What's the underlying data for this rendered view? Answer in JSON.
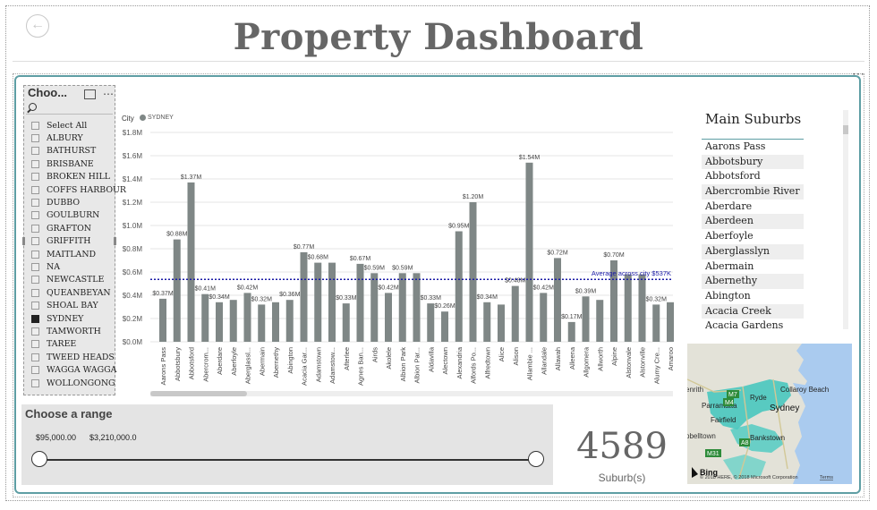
{
  "page": {
    "title": "Property Dashboard",
    "back_icon": "arrow-left-icon"
  },
  "report": {
    "more_label": "⋯"
  },
  "city_slicer": {
    "title": "Choo...",
    "items": [
      {
        "label": "Select All",
        "checked": false
      },
      {
        "label": "ALBURY",
        "checked": false
      },
      {
        "label": "BATHURST",
        "checked": false
      },
      {
        "label": "BRISBANE",
        "checked": false
      },
      {
        "label": "BROKEN HILL",
        "checked": false
      },
      {
        "label": "COFFS HARBOUR",
        "checked": false
      },
      {
        "label": "DUBBO",
        "checked": false
      },
      {
        "label": "GOULBURN",
        "checked": false
      },
      {
        "label": "GRAFTON",
        "checked": false
      },
      {
        "label": "GRIFFITH",
        "checked": false
      },
      {
        "label": "MAITLAND",
        "checked": false
      },
      {
        "label": "NA",
        "checked": false
      },
      {
        "label": "NEWCASTLE",
        "checked": false
      },
      {
        "label": "QUEANBEYAN",
        "checked": false
      },
      {
        "label": "SHOAL BAY",
        "checked": false
      },
      {
        "label": "SYDNEY",
        "checked": true
      },
      {
        "label": "TAMWORTH",
        "checked": false
      },
      {
        "label": "TAREE",
        "checked": false
      },
      {
        "label": "TWEED HEADS",
        "checked": false
      },
      {
        "label": "WAGGA WAGGA",
        "checked": false
      },
      {
        "label": "WOLLONGONG",
        "checked": false
      }
    ]
  },
  "legend": {
    "label": "City",
    "series": "SYDNEY",
    "color": "#7f8786"
  },
  "chart_data": {
    "type": "bar",
    "title": "",
    "xlabel": "",
    "ylabel": "",
    "ylim": [
      0,
      1.8
    ],
    "yticks": [
      "$0.0M",
      "$0.2M",
      "$0.4M",
      "$0.6M",
      "$0.8M",
      "$1.0M",
      "$1.2M",
      "$1.4M",
      "$1.6M",
      "$1.8M"
    ],
    "categories": [
      "Aarons Pass",
      "Abbotsbury",
      "Abbotsford",
      "Abercrom...",
      "Aberdare",
      "Aberfoyle",
      "Aberglassl...",
      "Abermain",
      "Abernethy",
      "Abington",
      "Acacia Gar...",
      "Adamstown",
      "Adamstow...",
      "Afterlee",
      "Agnes Ban...",
      "Airds",
      "Akolele",
      "Albion Park",
      "Albion Par...",
      "Aldavilla",
      "Alectown",
      "Alexandria",
      "Alfords Po...",
      "Alfredtown",
      "Alice",
      "Alison",
      "Allambie ...",
      "Allandale",
      "Allawah",
      "Alleena",
      "Allgomera",
      "Allworth",
      "Alpine",
      "Alstonvale",
      "Alstonville",
      "Alumy Cre...",
      "Amaroo"
    ],
    "values": [
      0.37,
      0.88,
      1.37,
      0.41,
      0.34,
      0.36,
      0.42,
      0.32,
      0.34,
      0.36,
      0.77,
      0.68,
      0.68,
      0.33,
      0.67,
      0.59,
      0.42,
      0.59,
      0.59,
      0.33,
      0.26,
      0.95,
      1.2,
      0.34,
      0.32,
      0.48,
      1.54,
      0.42,
      0.72,
      0.17,
      0.39,
      0.36,
      0.7,
      0.58,
      0.58,
      0.32,
      0.34
    ],
    "data_labels": [
      "$0.37M",
      "$0.88M",
      "$1.37M",
      "$0.41M",
      "$0.34M",
      "",
      "$0.42M",
      "$0.32M",
      "",
      "$0.36M",
      "$0.77M",
      "$0.68M",
      "",
      "$0.33M",
      "$0.67M",
      "$0.59M",
      "$0.42M",
      "$0.59M",
      "",
      "$0.33M",
      "$0.26M",
      "$0.95M",
      "$1.20M",
      "$0.34M",
      "",
      "$0.48M",
      "$1.54M",
      "$0.42M",
      "$0.72M",
      "$0.17M",
      "$0.39M",
      "",
      "$0.70M",
      "",
      "",
      "$0.32M",
      ""
    ],
    "series_name": "SYDNEY",
    "bar_color": "#7f8786",
    "average": {
      "value": 0.537,
      "label": "Average across city $537K",
      "color": "#1a1aa6"
    }
  },
  "suburbs": {
    "title": "Main Suburbs",
    "items": [
      "Aarons Pass",
      "Abbotsbury",
      "Abbotsford",
      "Abercrombie River",
      "Aberdare",
      "Aberdeen",
      "Aberfoyle",
      "Aberglasslyn",
      "Abermain",
      "Abernethy",
      "Abington",
      "Acacia Creek",
      "Acacia Gardens"
    ]
  },
  "map": {
    "places": [
      "Collaroy Beach",
      "Ryde",
      "Sydney",
      "Parramatta",
      "Fairfield",
      "Bankstown",
      "enrith",
      "pbelltown"
    ],
    "shields": [
      "M7",
      "M4",
      "M31",
      "A8"
    ],
    "brand": "Bing",
    "copyright": "© 2018 HERE, © 2018 Microsoft Corporation",
    "terms": "Terms"
  },
  "range": {
    "title": "Choose a range",
    "min_label": "$95,000.00",
    "max_label": "$3,210,000.0",
    "min_value": 95000,
    "max_value": 3210000
  },
  "card": {
    "value": "4589",
    "label": "Suburb(s)"
  }
}
